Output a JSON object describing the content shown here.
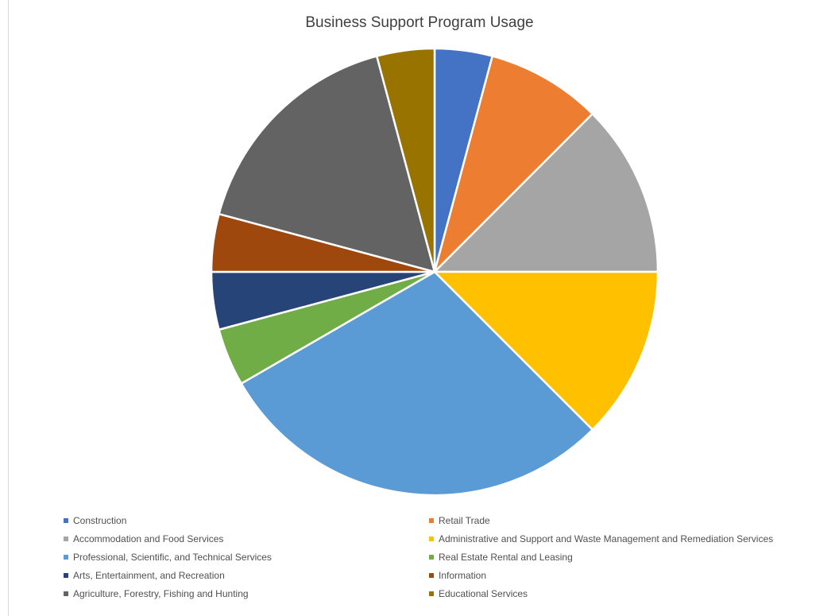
{
  "chart_data": {
    "type": "pie",
    "title": "Business Support Program Usage",
    "legend_position": "bottom",
    "start_angle_deg": 0,
    "direction": "clockwise",
    "slices": [
      {
        "label": "Construction",
        "value": 4.17,
        "color": "#4472C4"
      },
      {
        "label": "Retail Trade",
        "value": 8.33,
        "color": "#ED7D31"
      },
      {
        "label": "Accommodation and Food Services",
        "value": 12.5,
        "color": "#A5A5A5"
      },
      {
        "label": "Administrative and Support and Waste Management and Remediation Services",
        "value": 12.5,
        "color": "#FFC000"
      },
      {
        "label": "Professional, Scientific, and Technical Services",
        "value": 29.17,
        "color": "#5B9BD5"
      },
      {
        "label": "Real Estate Rental and Leasing",
        "value": 4.17,
        "color": "#70AD47"
      },
      {
        "label": "Arts, Entertainment, and Recreation",
        "value": 4.17,
        "color": "#264478"
      },
      {
        "label": "Information",
        "value": 4.17,
        "color": "#9E480E"
      },
      {
        "label": "Agriculture, Forestry, Fishing and Hunting",
        "value": 16.66,
        "color": "#636363"
      },
      {
        "label": "Educational Services",
        "value": 4.17,
        "color": "#997300"
      }
    ]
  }
}
